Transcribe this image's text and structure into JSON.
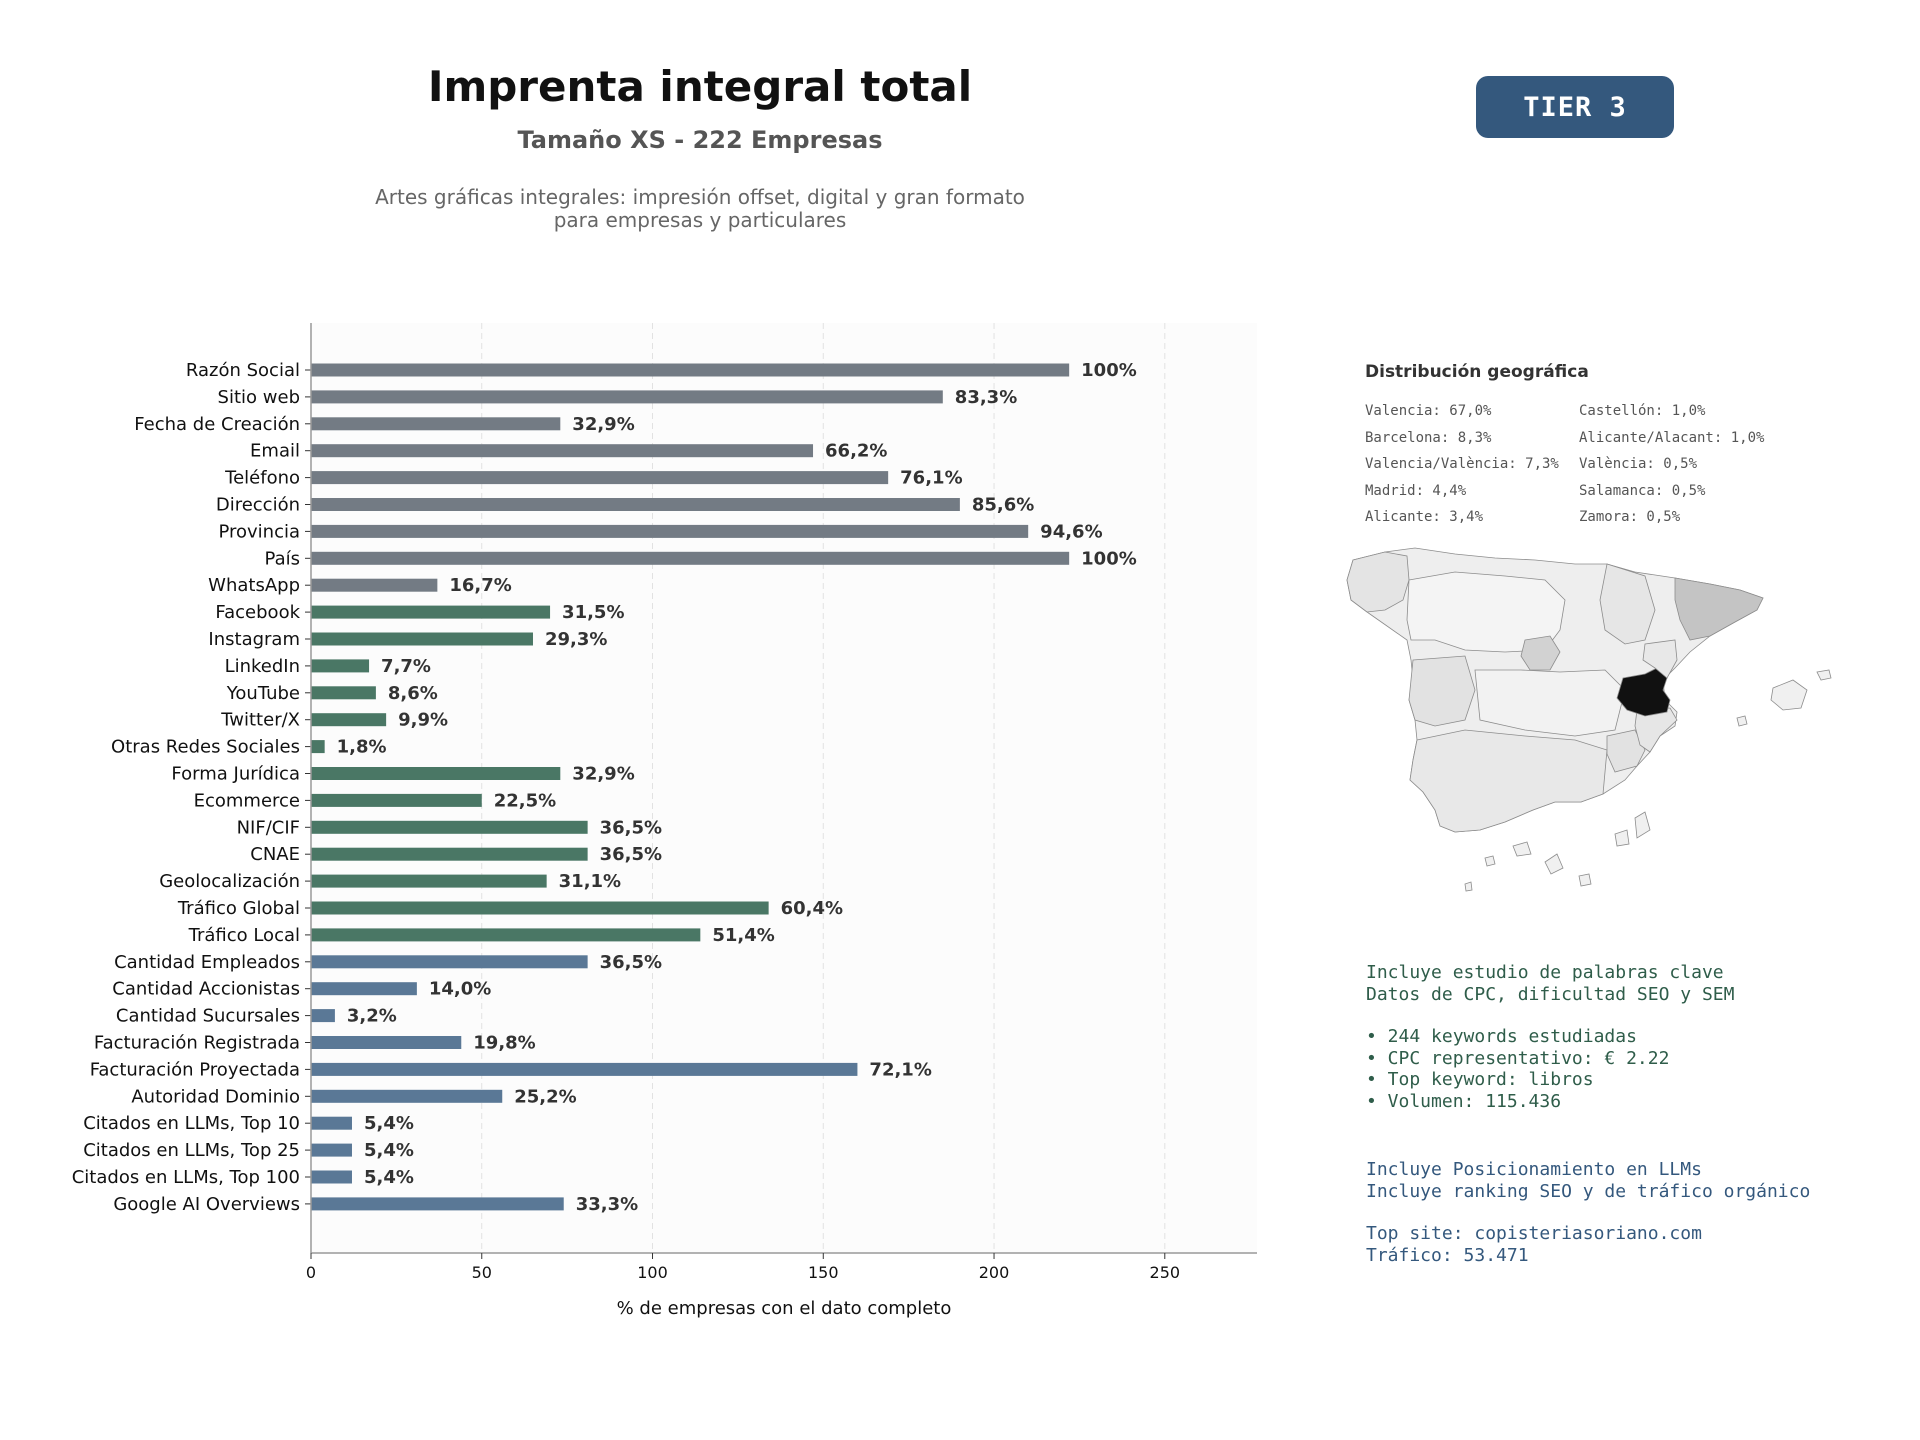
{
  "header": {
    "title": "Imprenta integral total",
    "subtitle": "Tamaño XS - 222 Empresas",
    "description_line1": "Artes gráficas integrales: impresión offset, digital y gran formato",
    "description_line2": "para empresas y particulares",
    "tier": "TIER 3"
  },
  "colors": {
    "gray": "#737b84",
    "green": "#4a7765",
    "blue": "#5a7896",
    "map_highlight": "#111111"
  },
  "chart_data": {
    "type": "bar",
    "orientation": "horizontal",
    "xlabel": "% de empresas con el dato completo",
    "xlim": [
      0,
      277
    ],
    "xticks": [
      0,
      50,
      100,
      150,
      200,
      250
    ],
    "grid": "vertical dashed",
    "categories": [
      "Razón Social",
      "Sitio web",
      "Fecha de Creación",
      "Email",
      "Teléfono",
      "Dirección",
      "Provincia",
      "País",
      "WhatsApp",
      "Facebook",
      "Instagram",
      "LinkedIn",
      "YouTube",
      "Twitter/X",
      "Otras Redes Sociales",
      "Forma Jurídica",
      "Ecommerce",
      "NIF/CIF",
      "CNAE",
      "Geolocalización",
      "Tráfico Global",
      "Tráfico Local",
      "Cantidad Empleados",
      "Cantidad Accionistas",
      "Cantidad Sucursales",
      "Facturación Registrada",
      "Facturación Proyectada",
      "Autoridad Dominio",
      "Citados en LLMs, Top 10",
      "Citados en LLMs, Top 25",
      "Citados en LLMs, Top 100",
      "Google AI Overviews"
    ],
    "values": [
      222,
      185,
      73,
      147,
      169,
      190,
      210,
      222,
      37,
      70,
      65,
      17,
      19,
      22,
      4,
      73,
      50,
      81,
      81,
      69,
      134,
      114,
      81,
      31,
      7,
      44,
      160,
      56,
      12,
      12,
      12,
      74
    ],
    "labels": [
      "100%",
      "83,3%",
      "32,9%",
      "66,2%",
      "76,1%",
      "85,6%",
      "94,6%",
      "100%",
      "16,7%",
      "31,5%",
      "29,3%",
      "7,7%",
      "8,6%",
      "9,9%",
      "1,8%",
      "32,9%",
      "22,5%",
      "36,5%",
      "36,5%",
      "31,1%",
      "60,4%",
      "51,4%",
      "36,5%",
      "14,0%",
      "3,2%",
      "19,8%",
      "72,1%",
      "25,2%",
      "5,4%",
      "5,4%",
      "5,4%",
      "33,3%"
    ],
    "groups": [
      "gray",
      "gray",
      "gray",
      "gray",
      "gray",
      "gray",
      "gray",
      "gray",
      "gray",
      "green",
      "green",
      "green",
      "green",
      "green",
      "green",
      "green",
      "green",
      "green",
      "green",
      "green",
      "green",
      "green",
      "blue",
      "blue",
      "blue",
      "blue",
      "blue",
      "blue",
      "blue",
      "blue",
      "blue",
      "blue"
    ]
  },
  "geo": {
    "title": "Distribución geográfica",
    "items": [
      "Valencia: 67,0%",
      "Castellón: 1,0%",
      "Barcelona: 8,3%",
      "Alicante/Alacant: 1,0%",
      "Valencia/València: 7,3%",
      "València: 0,5%",
      "Madrid: 4,4%",
      "Salamanca: 0,5%",
      "Alicante: 3,4%",
      "Zamora: 0,5%"
    ]
  },
  "keywords": {
    "line1": "Incluye estudio de palabras clave",
    "line2": "Datos de CPC, dificultad SEO y SEM",
    "bullet1": "• 244 keywords estudiadas",
    "bullet2": "• CPC representativo: € 2.22",
    "bullet3": "• Top keyword: libros",
    "bullet4": "• Volumen: 115.436"
  },
  "llm": {
    "line1": "Incluye Posicionamiento en LLMs",
    "line2": "Incluye ranking SEO y de tráfico orgánico",
    "top_site": "Top site: copisteriasoriano.com",
    "traffic": "Tráfico: 53.471"
  }
}
